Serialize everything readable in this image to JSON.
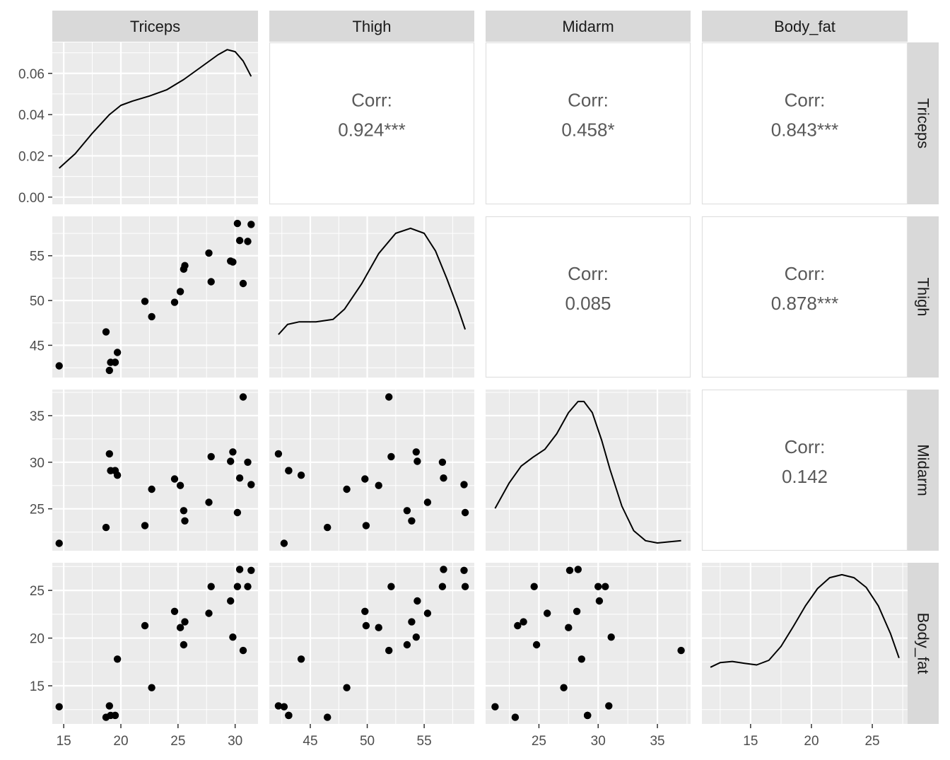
{
  "chart_data": {
    "type": "scatter-matrix",
    "variables": [
      "Triceps",
      "Thigh",
      "Midarm",
      "Body_fat"
    ],
    "strip_labels": {
      "top": [
        "Triceps",
        "Thigh",
        "Midarm",
        "Body_fat"
      ],
      "right": [
        "Triceps",
        "Thigh",
        "Midarm",
        "Body_fat"
      ]
    },
    "observations": {
      "Triceps": [
        14.6,
        18.7,
        19.0,
        19.1,
        19.5,
        19.5,
        19.7,
        22.1,
        22.7,
        24.7,
        25.2,
        25.5,
        25.6,
        27.7,
        27.9,
        29.6,
        29.8,
        30.2,
        30.4,
        30.7,
        31.1,
        31.4
      ],
      "Thigh": [
        42.7,
        46.5,
        42.2,
        43.1,
        43.1,
        43.1,
        44.2,
        49.9,
        48.2,
        49.8,
        51.0,
        53.5,
        53.9,
        55.3,
        52.1,
        54.4,
        54.3,
        58.6,
        56.7,
        51.9,
        56.6,
        58.5
      ],
      "Midarm": [
        21.3,
        23.0,
        30.9,
        29.1,
        29.1,
        29.1,
        28.6,
        23.2,
        27.1,
        28.2,
        27.5,
        24.8,
        23.7,
        25.7,
        30.6,
        30.1,
        31.1,
        24.6,
        28.3,
        37.0,
        30.0,
        27.6
      ],
      "Body_fat": [
        12.8,
        11.7,
        12.9,
        11.9,
        11.9,
        11.9,
        17.8,
        21.3,
        14.8,
        22.8,
        21.1,
        19.3,
        21.7,
        22.6,
        25.4,
        23.9,
        20.1,
        25.4,
        27.2,
        18.7,
        25.4,
        27.1
      ]
    },
    "correlations": [
      {
        "row": "Triceps",
        "col": "Thigh",
        "label": "Corr:",
        "value": "0.924***"
      },
      {
        "row": "Triceps",
        "col": "Midarm",
        "label": "Corr:",
        "value": "0.458*"
      },
      {
        "row": "Triceps",
        "col": "Body_fat",
        "label": "Corr:",
        "value": "0.843***"
      },
      {
        "row": "Thigh",
        "col": "Midarm",
        "label": "Corr:",
        "value": "0.085"
      },
      {
        "row": "Thigh",
        "col": "Body_fat",
        "label": "Corr:",
        "value": "0.878***"
      },
      {
        "row": "Midarm",
        "col": "Body_fat",
        "label": "Corr:",
        "value": "0.142"
      }
    ],
    "density_curves": {
      "Triceps": {
        "x": [
          14.6,
          16,
          17.5,
          19,
          20,
          21,
          22.5,
          24,
          25.5,
          27,
          28.5,
          29.3,
          30,
          30.7,
          31.4
        ],
        "y": [
          0.014,
          0.021,
          0.031,
          0.04,
          0.0445,
          0.0465,
          0.049,
          0.052,
          0.057,
          0.063,
          0.069,
          0.0715,
          0.0705,
          0.066,
          0.0585
        ]
      },
      "Thigh": {
        "x": [
          42.2,
          43,
          44,
          45.5,
          47,
          48,
          49.5,
          51,
          52.5,
          53.8,
          55,
          56,
          57,
          58,
          58.6
        ],
        "y": [
          0.0085,
          0.0105,
          0.011,
          0.011,
          0.0115,
          0.0135,
          0.0185,
          0.0245,
          0.0285,
          0.0295,
          0.0285,
          0.025,
          0.0195,
          0.0135,
          0.0095
        ]
      },
      "Midarm": {
        "x": [
          21.3,
          22.5,
          23.5,
          24.5,
          25.5,
          26.5,
          27.5,
          28.3,
          28.8,
          29.5,
          30.3,
          31,
          32,
          33,
          34,
          35,
          36,
          37
        ],
        "y": [
          0.038,
          0.061,
          0.076,
          0.084,
          0.091,
          0.105,
          0.124,
          0.134,
          0.134,
          0.124,
          0.099,
          0.073,
          0.04,
          0.018,
          0.009,
          0.007,
          0.008,
          0.009
        ]
      },
      "Body_fat": {
        "x": [
          11.7,
          12.5,
          13.5,
          14.5,
          15.5,
          16.5,
          17.5,
          18.5,
          19.5,
          20.5,
          21.5,
          22.5,
          23.5,
          24.5,
          25.5,
          26.5,
          27.2
        ],
        "y": [
          0.0245,
          0.0265,
          0.027,
          0.0262,
          0.0255,
          0.0275,
          0.0335,
          0.042,
          0.051,
          0.0585,
          0.0632,
          0.0645,
          0.0632,
          0.059,
          0.051,
          0.039,
          0.0285
        ]
      }
    },
    "axes": {
      "Triceps": {
        "lim": [
          14.0,
          32.0
        ],
        "ticks": [
          "15",
          "20",
          "25",
          "30"
        ]
      },
      "Thigh": {
        "lim": [
          41.4,
          59.4
        ],
        "ticks": [
          "45",
          "50",
          "55"
        ]
      },
      "Midarm": {
        "lim": [
          20.5,
          37.8
        ],
        "ticks": [
          "25",
          "30",
          "35"
        ]
      },
      "Body_fat": {
        "lim": [
          11.0,
          27.9
        ],
        "ticks": [
          "15",
          "20",
          "25"
        ]
      }
    },
    "row_axes": {
      "Triceps": {
        "lim": [
          -0.0035,
          0.075
        ],
        "ticks": [
          "0.00",
          "0.02",
          "0.04",
          "0.06"
        ]
      },
      "Thigh": {
        "lim": [
          41.4,
          59.4
        ],
        "ticks": [
          "45",
          "50",
          "55"
        ]
      },
      "Midarm": {
        "lim": [
          20.5,
          37.8
        ],
        "ticks": [
          "25",
          "30",
          "35"
        ]
      },
      "Body_fat": {
        "lim": [
          11.0,
          27.9
        ],
        "ticks": [
          "15",
          "20",
          "25"
        ]
      }
    }
  }
}
